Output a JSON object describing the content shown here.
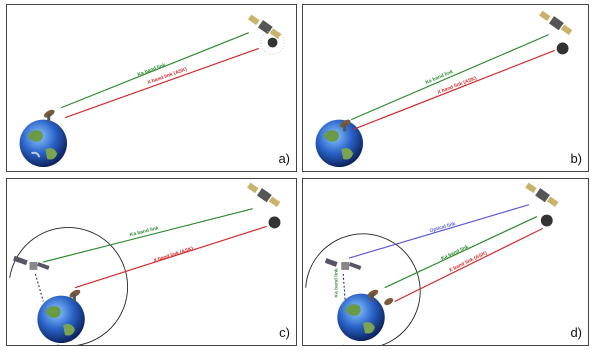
{
  "panels": [
    {
      "label": "a)",
      "links": [
        {
          "text": "Ka band link",
          "color": "#2e8b2e"
        },
        {
          "text": "X band link (ASK)",
          "color": "#d22a2a"
        }
      ]
    },
    {
      "label": "b)",
      "links": [
        {
          "text": "Ka band link",
          "color": "#2e8b2e"
        },
        {
          "text": "X band link (ASK)",
          "color": "#d22a2a"
        }
      ]
    },
    {
      "label": "c)",
      "links": [
        {
          "text": "Ka band link",
          "color": "#2e8b2e"
        },
        {
          "text": "X band link (ASK)",
          "color": "#d22a2a"
        }
      ]
    },
    {
      "label": "d)",
      "links": [
        {
          "text": "Optical link",
          "color": "#5b5bd6"
        },
        {
          "text": "Ka band link",
          "color": "#2e8b2e"
        },
        {
          "text": "X band link (ASK)",
          "color": "#d22a2a"
        },
        {
          "text": "Ka band link",
          "color": "#2e8b2e"
        }
      ]
    }
  ],
  "colors": {
    "ka": "#2e8b2e",
    "x": "#d22a2a",
    "optical": "#5b5bd6"
  }
}
